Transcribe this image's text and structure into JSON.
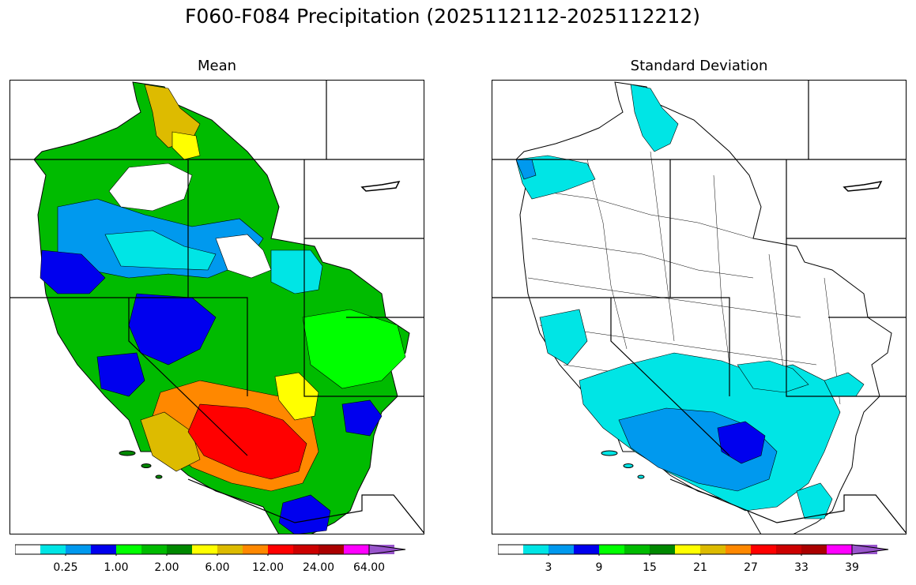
{
  "suptitle": "F060-F084 Precipitation (2025112112-2025112212)",
  "panels": [
    {
      "title": "Mean",
      "colorbar": {
        "colors": [
          "#ffffff",
          "#00e5e5",
          "#0099ee",
          "#0000ee",
          "#00ff00",
          "#00bb00",
          "#008800",
          "#ffff00",
          "#ddbb00",
          "#ff8800",
          "#ff0000",
          "#cc0000",
          "#aa0000",
          "#ff00ff",
          "#9955cc"
        ],
        "tick_labels": [
          "0.25",
          "1.00",
          "2.00",
          "6.00",
          "12.00",
          "24.00",
          "64.00"
        ],
        "extend": "max"
      }
    },
    {
      "title": "Standard Deviation",
      "colorbar": {
        "colors": [
          "#ffffff",
          "#00e5e5",
          "#0099ee",
          "#0000ee",
          "#00ff00",
          "#00bb00",
          "#008800",
          "#ffff00",
          "#ddbb00",
          "#ff8800",
          "#ff0000",
          "#cc0000",
          "#aa0000",
          "#ff00ff",
          "#9955cc"
        ],
        "tick_labels": [
          "3",
          "9",
          "15",
          "21",
          "27",
          "33",
          "39"
        ],
        "extend": "max"
      }
    }
  ]
}
